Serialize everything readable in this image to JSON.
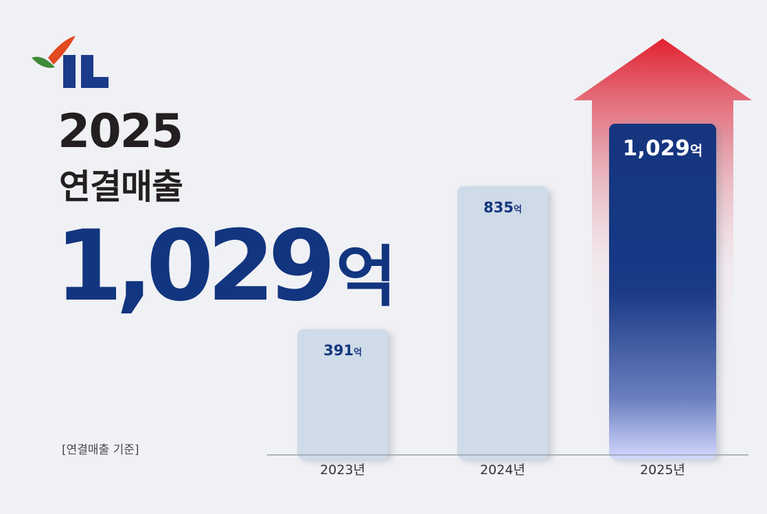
{
  "logo_text": "IL",
  "headline": {
    "year": "2025",
    "subtitle": "연결매출",
    "value": "1,029",
    "unit": "억"
  },
  "footnote": "[연결매출 기준]",
  "chart_data": {
    "type": "bar",
    "categories": [
      "2023년",
      "2024년",
      "2025년"
    ],
    "values": [
      391,
      835,
      1029
    ],
    "value_labels": [
      "391",
      "835",
      "1,029"
    ],
    "unit": "억",
    "title": "",
    "xlabel": "",
    "ylabel": "",
    "ylim": [
      0,
      1029
    ],
    "grid": false,
    "legend": "none",
    "annotation": "upward arrow behind 2025 bar",
    "colors": {
      "bar_default": "#d0dbe9",
      "bar_highlight": "#13357e",
      "label_text": "#13357e",
      "highlight_label_text": "#ffffff",
      "arrow": "#e2202f",
      "axis": "#9aa0a8"
    }
  }
}
